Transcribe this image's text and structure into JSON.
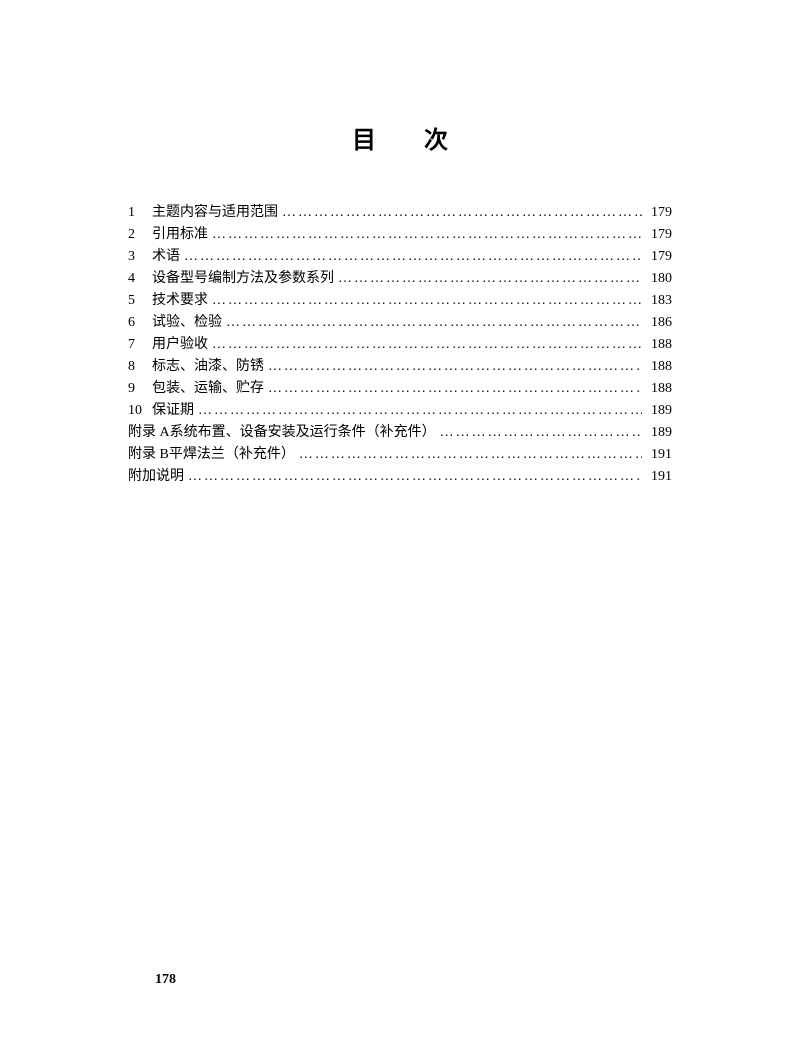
{
  "title": "目次",
  "title_char1": "目",
  "title_char2": "次",
  "page_number": "178",
  "toc": {
    "entries": [
      {
        "number": "1",
        "label": "主题内容与适用范围",
        "page": "179"
      },
      {
        "number": "2",
        "label": "引用标准",
        "page": "179"
      },
      {
        "number": "3",
        "label": "术语",
        "page": "179"
      },
      {
        "number": "4",
        "label": "设备型号编制方法及参数系列",
        "page": "180"
      },
      {
        "number": "5",
        "label": "技术要求",
        "page": "183"
      },
      {
        "number": "6",
        "label": "试验、检验",
        "page": "186"
      },
      {
        "number": "7",
        "label": "用户验收",
        "page": "188"
      },
      {
        "number": "8",
        "label": "标志、油漆、防锈",
        "page": "188"
      },
      {
        "number": "9",
        "label": "包装、运输、贮存",
        "page": "188"
      },
      {
        "number": "10",
        "label": "保证期",
        "page": "189"
      },
      {
        "number": "附录 A",
        "label": "  系统布置、设备安装及运行条件（补充件）",
        "page": "189"
      },
      {
        "number": "附录 B",
        "label": "  平焊法兰（补充件）",
        "page": "191"
      },
      {
        "number": "",
        "label": "附加说明",
        "page": "191"
      }
    ]
  },
  "dots_fill": "………………………………………………………………………………………………………………………………………………"
}
